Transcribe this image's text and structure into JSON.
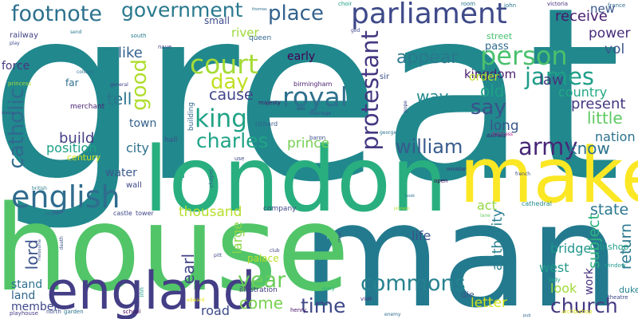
{
  "words": [
    {
      "text": "great",
      "color": "#21888d"
    },
    {
      "text": "man",
      "color": "#237a8e"
    },
    {
      "text": "house",
      "color": "#52c569"
    },
    {
      "text": "london",
      "color": "#29af7f"
    },
    {
      "text": "make",
      "color": "#fbe724"
    },
    {
      "text": "england",
      "color": "#433e85"
    },
    {
      "text": "parliament",
      "color": "#3e4a89"
    },
    {
      "text": "english",
      "color": "#2f6c8e"
    },
    {
      "text": "footnote",
      "color": "#2c718e"
    },
    {
      "text": "government",
      "color": "#29798e"
    },
    {
      "text": "place",
      "color": "#33628d"
    },
    {
      "text": "person",
      "color": "#4ac16d"
    },
    {
      "text": "court",
      "color": "#a5db36"
    },
    {
      "text": "james",
      "color": "#1f9f88"
    },
    {
      "text": "king",
      "color": "#20a386"
    },
    {
      "text": "royal",
      "color": "#2d708e"
    },
    {
      "text": "day",
      "color": "#c2df23"
    },
    {
      "text": "good",
      "color": "#b0dd2f"
    },
    {
      "text": "charles",
      "color": "#20a486"
    },
    {
      "text": "william",
      "color": "#375b8d"
    },
    {
      "text": "army",
      "color": "#482677"
    },
    {
      "text": "protestant",
      "color": "#453781"
    },
    {
      "text": "catholic",
      "color": "#306a8e"
    },
    {
      "text": "time",
      "color": "#3e4989"
    },
    {
      "text": "commons",
      "color": "#26818e"
    },
    {
      "text": "church",
      "color": "#443a83"
    },
    {
      "text": "year",
      "color": "#6ccd5a"
    },
    {
      "text": "come",
      "color": "#7ad151"
    },
    {
      "text": "say",
      "color": "#3b518b"
    },
    {
      "text": "know",
      "color": "#2c728e"
    },
    {
      "text": "appear",
      "color": "#2a788e"
    },
    {
      "text": "receive",
      "color": "#481b6d"
    },
    {
      "text": "power",
      "color": "#472d7b"
    },
    {
      "text": "vol",
      "color": "#39568c"
    },
    {
      "text": "kingdom",
      "color": "#481f70"
    },
    {
      "text": "old",
      "color": "#1fa187"
    },
    {
      "text": "way",
      "color": "#23898e"
    },
    {
      "text": "long",
      "color": "#39558c"
    },
    {
      "text": "law",
      "color": "#46337e"
    },
    {
      "text": "tell",
      "color": "#2a768e"
    },
    {
      "text": "like",
      "color": "#33628d"
    },
    {
      "text": "cause",
      "color": "#404688"
    },
    {
      "text": "present",
      "color": "#453882"
    },
    {
      "text": "country",
      "color": "#22a884"
    },
    {
      "text": "little",
      "color": "#5ec962"
    },
    {
      "text": "nation",
      "color": "#2c738e"
    },
    {
      "text": "new",
      "color": "#39568c"
    },
    {
      "text": "prince",
      "color": "#75d054"
    },
    {
      "text": "build",
      "color": "#433e85"
    },
    {
      "text": "position",
      "color": "#1fa188"
    },
    {
      "text": "city",
      "color": "#2d708e"
    },
    {
      "text": "town",
      "color": "#34618d"
    },
    {
      "text": "lord",
      "color": "#3b528b"
    },
    {
      "text": "earl",
      "color": "#414487"
    },
    {
      "text": "life",
      "color": "#3b518b"
    },
    {
      "text": "thousand",
      "color": "#b5de2b"
    },
    {
      "text": "act",
      "color": "#93d741"
    },
    {
      "text": "state",
      "color": "#2a778e"
    },
    {
      "text": "authority",
      "color": "#287d8e"
    },
    {
      "text": "subject",
      "color": "#2db27d"
    },
    {
      "text": "return",
      "color": "#2a788e"
    },
    {
      "text": "bridge",
      "color": "#1f968b"
    },
    {
      "text": "west",
      "color": "#1f998a"
    },
    {
      "text": "look",
      "color": "#a0da39"
    },
    {
      "text": "letter",
      "color": "#d2e21b"
    },
    {
      "text": "work",
      "color": "#46327e"
    },
    {
      "text": "large",
      "color": "#8bd646"
    },
    {
      "text": "order",
      "color": "#bddf26"
    },
    {
      "text": "water",
      "color": "#38598c"
    },
    {
      "text": "stand",
      "color": "#2d708e"
    },
    {
      "text": "land",
      "color": "#31678e"
    },
    {
      "text": "member",
      "color": "#3f4889"
    },
    {
      "text": "road",
      "color": "#3e4c8a"
    },
    {
      "text": "early",
      "color": "#440154"
    },
    {
      "text": "river",
      "color": "#9bd93c"
    },
    {
      "text": "force",
      "color": "#453781"
    },
    {
      "text": "small",
      "color": "#3e4a89"
    },
    {
      "text": "railway",
      "color": "#424186"
    },
    {
      "text": "pass",
      "color": "#2f6b8e"
    },
    {
      "text": "far",
      "color": "#2e6e8e"
    },
    {
      "text": "bishop",
      "color": "#1f9e89"
    },
    {
      "text": "duke",
      "color": "#25838e"
    },
    {
      "text": "street",
      "color": "#48c16e"
    },
    {
      "text": "century",
      "color": "#cde11d"
    },
    {
      "text": "merchant",
      "color": "#482576"
    },
    {
      "text": "palace",
      "color": "#b8de29"
    },
    {
      "text": "hall",
      "color": "#3c508b"
    },
    {
      "text": "building",
      "color": "#31688e"
    },
    {
      "text": "wall",
      "color": "#3f4788"
    },
    {
      "text": "company",
      "color": "#3f4788"
    },
    {
      "text": "die",
      "color": "#3b528b"
    },
    {
      "text": "illustration",
      "color": "#443983"
    },
    {
      "text": "sir",
      "color": "#3a548c"
    },
    {
      "text": "queen",
      "color": "#31678e"
    },
    {
      "text": "birmingham",
      "color": "#481d6f"
    },
    {
      "text": "majesty",
      "color": "#481467"
    },
    {
      "text": "richard",
      "color": "#355f8d"
    },
    {
      "text": "baron",
      "color": "#3c4f8a"
    },
    {
      "text": "chapel",
      "color": "#355f8d"
    },
    {
      "text": "castle",
      "color": "#3e4a89"
    },
    {
      "text": "tower",
      "color": "#3f4889"
    },
    {
      "text": "school",
      "color": "#46085c"
    },
    {
      "text": "garden",
      "color": "#2d718e"
    },
    {
      "text": "north",
      "color": "#3d4e8a"
    },
    {
      "text": "playhouse",
      "color": "#433d84"
    },
    {
      "text": "minister",
      "color": "#472c7a"
    },
    {
      "text": "inn",
      "color": "#1f9a8a"
    },
    {
      "text": "henry",
      "color": "#471365"
    },
    {
      "text": "cathedral",
      "color": "#238a8d"
    },
    {
      "text": "theatre",
      "color": "#3f4889"
    },
    {
      "text": "lady",
      "color": "#1fa088"
    },
    {
      "text": "window",
      "color": "#1f988b"
    },
    {
      "text": "archbishop",
      "color": "#dde318"
    },
    {
      "text": "john",
      "color": "#2a788e"
    },
    {
      "text": "victoria",
      "color": "#472f7d"
    },
    {
      "text": "france",
      "color": "#31688e"
    },
    {
      "text": "choir",
      "color": "#1fa287"
    },
    {
      "text": "room",
      "color": "#2a768e"
    },
    {
      "text": "nave",
      "color": "#3e4989"
    },
    {
      "text": "south",
      "color": "#297b8e"
    },
    {
      "text": "french",
      "color": "#3e4c8a"
    },
    {
      "text": "open",
      "color": "#440154"
    },
    {
      "text": "mary",
      "color": "#25ac82"
    },
    {
      "text": "visit",
      "color": "#46307e"
    },
    {
      "text": "enemy",
      "color": "#2e6f8e"
    },
    {
      "text": "lane",
      "color": "#65cb5e"
    },
    {
      "text": "play",
      "color": "#3e4c8a"
    },
    {
      "text": "send",
      "color": "#297a8e"
    },
    {
      "text": "princess",
      "color": "#a2da37"
    },
    {
      "text": "general",
      "color": "#424086"
    },
    {
      "text": "college",
      "color": "#2e6e8e"
    },
    {
      "text": "statue",
      "color": "#414487"
    },
    {
      "text": "british",
      "color": "#277f8e"
    },
    {
      "text": "refore",
      "color": "#2d708e"
    },
    {
      "text": "melbourne",
      "color": "#3b528b"
    },
    {
      "text": "edward",
      "color": "#e5e419"
    },
    {
      "text": "pitt",
      "color": "#3e4c8a"
    },
    {
      "text": "club",
      "color": "#404588"
    },
    {
      "text": "dutchess",
      "color": "#ad1f8a"
    },
    {
      "text": "duchess",
      "color": "#48186a"
    },
    {
      "text": "george",
      "color": "#2b748e"
    },
    {
      "text": "pope",
      "color": "#3e4a89"
    },
    {
      "text": "bill",
      "color": "#21918c"
    },
    {
      "text": "son",
      "color": "#3e4989"
    },
    {
      "text": "marriage",
      "color": "#3b528b"
    },
    {
      "text": "hook",
      "color": "#2c728e"
    },
    {
      "text": "johnson",
      "color": "#b8de29"
    },
    {
      "text": "stage",
      "color": "#3b528b"
    },
    {
      "text": "use",
      "color": "#3e4a89"
    },
    {
      "text": "god",
      "color": "#3f4788"
    },
    {
      "text": "thomas",
      "color": "#2d718e"
    },
    {
      "text": "death",
      "color": "#3b528b"
    },
    {
      "text": "pub",
      "color": "#31688e"
    }
  ]
}
